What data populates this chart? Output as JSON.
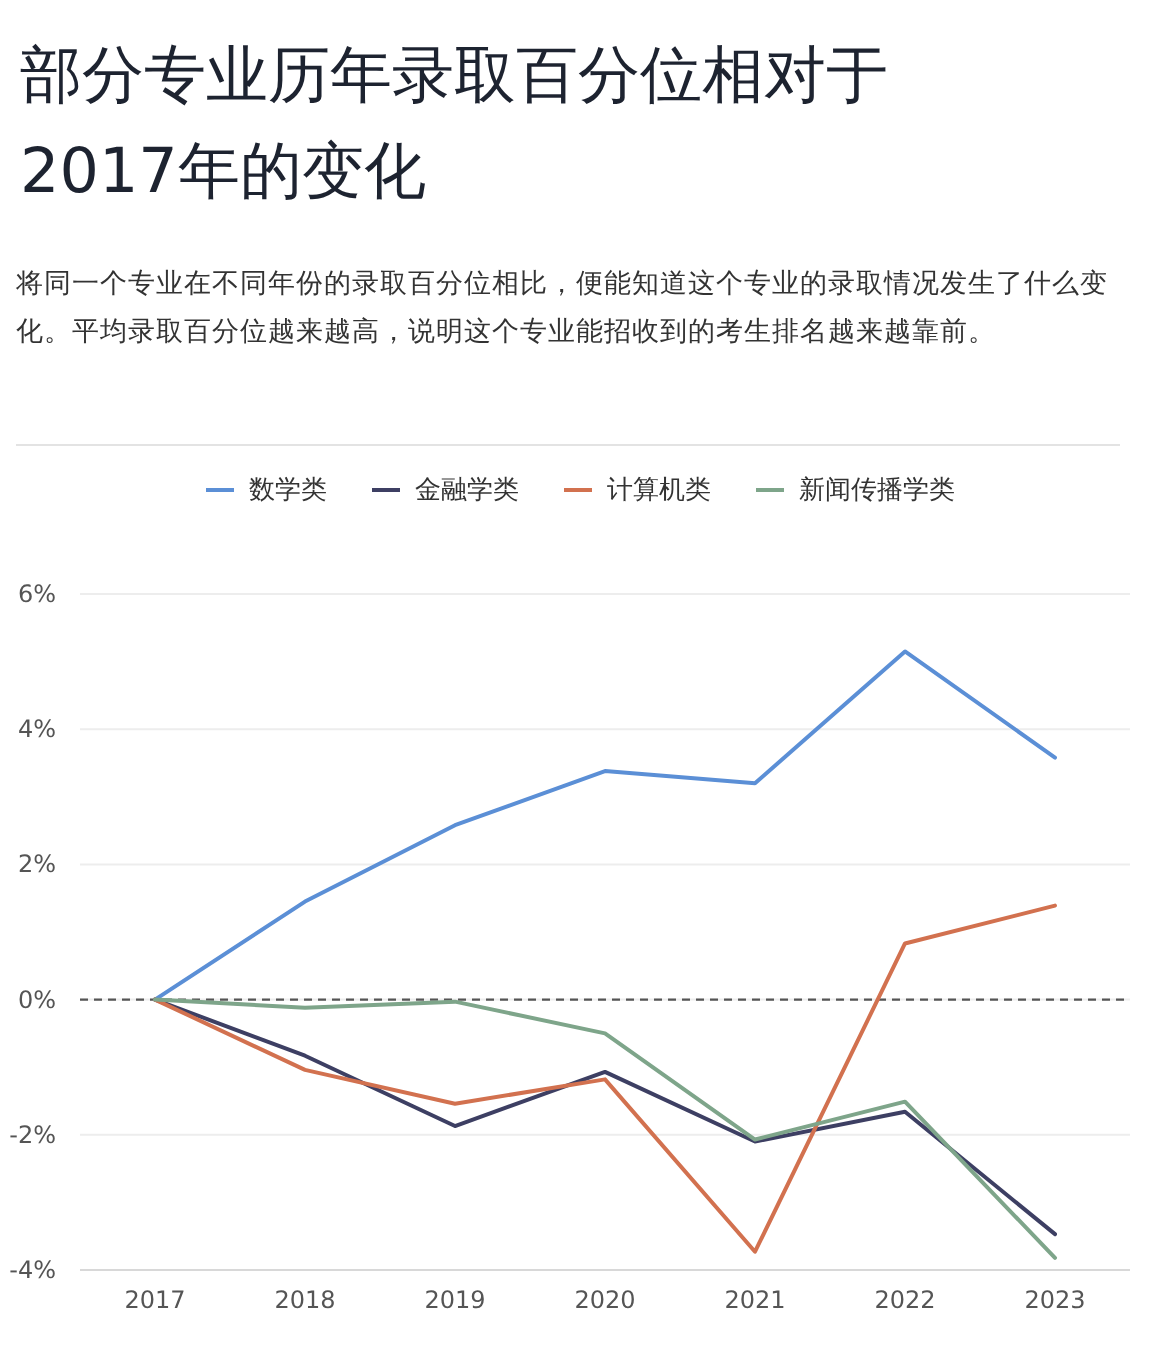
{
  "chart_data": {
    "type": "line",
    "title": "部分专业历年录取百分位相对于2017年的变化",
    "subtitle": "将同一个专业在不同年份的录取百分位相比，便能知道这个专业的录取情况发生了什么变化。平均录取百分位越来越高，说明这个专业能招收到的考生排名越来越靠前。",
    "categories": [
      "2017",
      "2018",
      "2019",
      "2020",
      "2021",
      "2022",
      "2023"
    ],
    "series": [
      {
        "name": "数学类",
        "color": "#5b8fd6",
        "values": [
          0,
          1.45,
          2.58,
          3.38,
          3.2,
          5.15,
          3.58
        ]
      },
      {
        "name": "金融学类",
        "color": "#3d3f63",
        "values": [
          0,
          -0.83,
          -1.87,
          -1.07,
          -2.1,
          -1.66,
          -3.47
        ]
      },
      {
        "name": "计算机类",
        "color": "#d2714f",
        "values": [
          0,
          -1.04,
          -1.54,
          -1.18,
          -3.73,
          0.83,
          1.39
        ]
      },
      {
        "name": "新闻传播学类",
        "color": "#7ea58a",
        "values": [
          0,
          -0.12,
          -0.03,
          -0.5,
          -2.07,
          -1.51,
          -3.82
        ]
      }
    ],
    "ylim": [
      -4,
      6
    ],
    "yticks": [
      {
        "value": -4,
        "label": "-4%"
      },
      {
        "value": -2,
        "label": "-2%"
      },
      {
        "value": 0,
        "label": "0%"
      },
      {
        "value": 2,
        "label": "2%"
      },
      {
        "value": 4,
        "label": "4%"
      },
      {
        "value": 6,
        "label": "6%"
      }
    ],
    "grid": "y",
    "legend": "top",
    "marker": "none",
    "line_style": "solid",
    "ref_lines": [
      {
        "axis": "y",
        "value": 0,
        "color": "#555555",
        "line_style": "dashed"
      }
    ]
  }
}
